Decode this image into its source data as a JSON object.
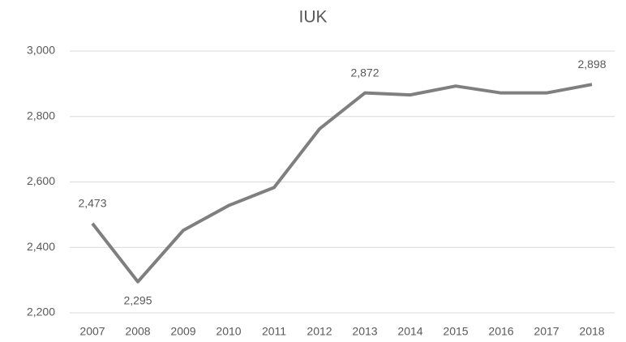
{
  "chart_data": {
    "type": "line",
    "title": "IUK",
    "categories": [
      "2007",
      "2008",
      "2009",
      "2010",
      "2011",
      "2012",
      "2013",
      "2014",
      "2015",
      "2016",
      "2017",
      "2018"
    ],
    "series": [
      {
        "name": "IUK",
        "color": "#7f7f7f",
        "values": [
          2473,
          2295,
          2452,
          2528,
          2583,
          2762,
          2872,
          2866,
          2893,
          2872,
          2872,
          2898
        ],
        "value_labels": [
          "2,473",
          "2,295",
          null,
          null,
          null,
          null,
          "2,872",
          null,
          null,
          null,
          null,
          "2,898"
        ]
      }
    ],
    "ylim": [
      2200,
      3000
    ],
    "yticks": [
      {
        "value": 2200,
        "label": "2,200"
      },
      {
        "value": 2400,
        "label": "2,400"
      },
      {
        "value": 2600,
        "label": "2,600"
      },
      {
        "value": 2800,
        "label": "2,800"
      },
      {
        "value": 3000,
        "label": "3,000"
      }
    ],
    "grid": true,
    "legend": false
  }
}
